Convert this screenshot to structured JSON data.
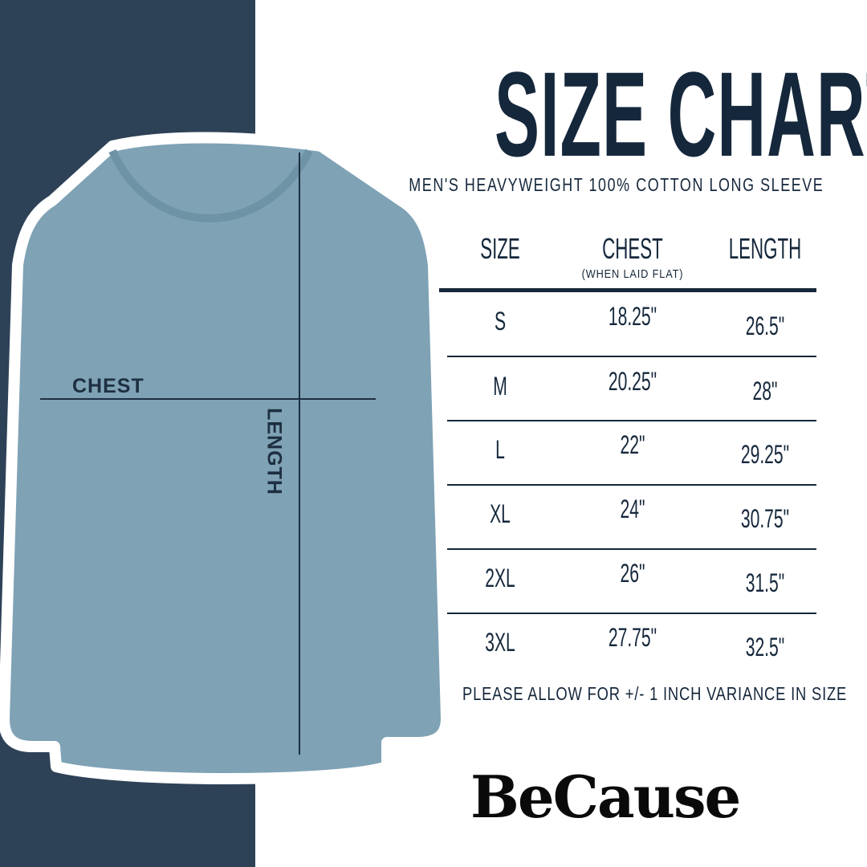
{
  "title": "SIZE CHART",
  "subtitle": "MEN'S HEAVYWEIGHT 100% COTTON LONG SLEEVE",
  "table": {
    "headers": [
      "SIZE",
      "CHEST",
      "LENGTH"
    ],
    "chest_note": "(WHEN LAID FLAT)",
    "rows": [
      {
        "size": "S",
        "chest": "18.25\"",
        "length": "26.5\""
      },
      {
        "size": "M",
        "chest": "20.25\"",
        "length": "28\""
      },
      {
        "size": "L",
        "chest": "22\"",
        "length": "29.25\""
      },
      {
        "size": "XL",
        "chest": "24\"",
        "length": "30.75\""
      },
      {
        "size": "2XL",
        "chest": "26\"",
        "length": "31.5\""
      },
      {
        "size": "3XL",
        "chest": "27.75\"",
        "length": "32.5\""
      }
    ]
  },
  "note": "PLEASE ALLOW FOR +/- 1 INCH VARIANCE IN SIZE",
  "shirt_labels": {
    "chest": "CHEST",
    "length": "LENGTH"
  },
  "logo": "BeCause",
  "colors": {
    "navy_strip": "#2e4257",
    "text": "#15273b",
    "shirt": "#7fa2b5"
  }
}
